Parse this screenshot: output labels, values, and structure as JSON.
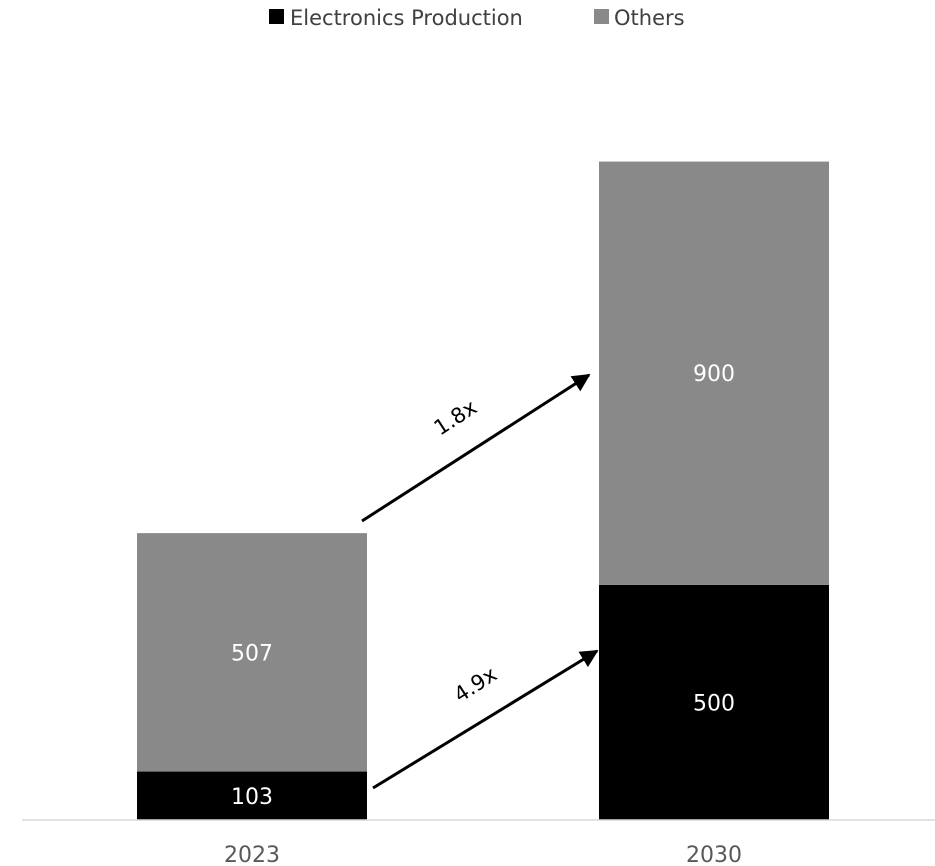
{
  "chart_data": {
    "type": "bar",
    "stacked": true,
    "categories": [
      "2023",
      "2030"
    ],
    "series": [
      {
        "name": "Electronics Production",
        "values": [
          103,
          500
        ],
        "color": "#000000",
        "label_color": "#ffffff"
      },
      {
        "name": "Others",
        "values": [
          507,
          900
        ],
        "color": "#898989",
        "label_color": "#ffffff"
      }
    ],
    "value_labels": [
      [
        "103",
        "500"
      ],
      [
        "507",
        "900"
      ]
    ],
    "annotations": [
      {
        "text": "1.8x",
        "series": "Others"
      },
      {
        "text": "4.9x",
        "series": "Electronics Production"
      }
    ],
    "ylim": [
      0,
      1400
    ],
    "grid": false,
    "legend_position": "top-center",
    "axis_color": "#d9d9d9"
  }
}
